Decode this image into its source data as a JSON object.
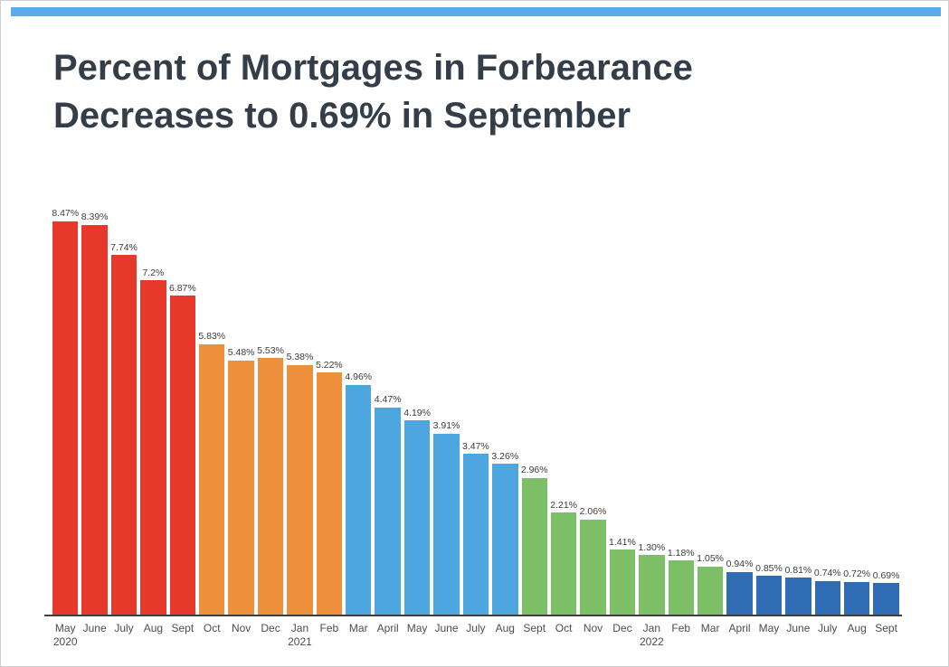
{
  "page": {
    "title_line1": "Percent of Mortgages in Forbearance",
    "title_line2": "Decreases to 0.69% in September"
  },
  "chart_data": {
    "type": "bar",
    "title": "Percent of Mortgages in Forbearance Decreases to 0.69% in September",
    "xlabel": "",
    "ylabel": "",
    "ylim": [
      0,
      8.8
    ],
    "grid": false,
    "legend": false,
    "categories": [
      "May",
      "June",
      "July",
      "Aug",
      "Sept",
      "Oct",
      "Nov",
      "Dec",
      "Jan",
      "Feb",
      "Mar",
      "April",
      "May",
      "June",
      "July",
      "Aug",
      "Sept",
      "Oct",
      "Nov",
      "Dec",
      "Jan",
      "Feb",
      "Mar",
      "April",
      "May",
      "June",
      "July",
      "Aug",
      "Sept"
    ],
    "year_labels": {
      "0": "2020",
      "8": "2021",
      "20": "2022"
    },
    "values": [
      8.47,
      8.39,
      7.74,
      7.2,
      6.87,
      5.83,
      5.48,
      5.53,
      5.38,
      5.22,
      4.96,
      4.47,
      4.19,
      3.91,
      3.47,
      3.26,
      2.96,
      2.21,
      2.06,
      1.41,
      1.3,
      1.18,
      1.05,
      0.94,
      0.85,
      0.81,
      0.74,
      0.72,
      0.69
    ],
    "value_labels": [
      "8.47%",
      "8.39%",
      "7.74%",
      "7.2%",
      "6.87%",
      "5.83%",
      "5.48%",
      "5.53%",
      "5.38%",
      "5.22%",
      "4.96%",
      "4.47%",
      "4.19%",
      "3.91%",
      "3.47%",
      "3.26%",
      "2.96%",
      "2.21%",
      "2.06%",
      "1.41%",
      "1.30%",
      "1.18%",
      "1.05%",
      "0.94%",
      "0.85%",
      "0.81%",
      "0.74%",
      "0.72%",
      "0.69%"
    ],
    "bar_color_keys": [
      "red",
      "red",
      "red",
      "red",
      "red",
      "orange",
      "orange",
      "orange",
      "orange",
      "orange",
      "lightBlue",
      "lightBlue",
      "lightBlue",
      "lightBlue",
      "lightBlue",
      "lightBlue",
      "green",
      "green",
      "green",
      "green",
      "green",
      "green",
      "green",
      "darkBlue",
      "darkBlue",
      "darkBlue",
      "darkBlue",
      "darkBlue",
      "darkBlue"
    ],
    "palette": {
      "red": "#E6392B",
      "orange": "#EE8F3C",
      "lightBlue": "#4DA6E0",
      "green": "#7CBF66",
      "darkBlue": "#2F6CB4"
    }
  },
  "decor": {
    "stripe_color": "#58ACE9",
    "title_color": "#333E48",
    "axis_line_color": "#3F3F3F"
  }
}
